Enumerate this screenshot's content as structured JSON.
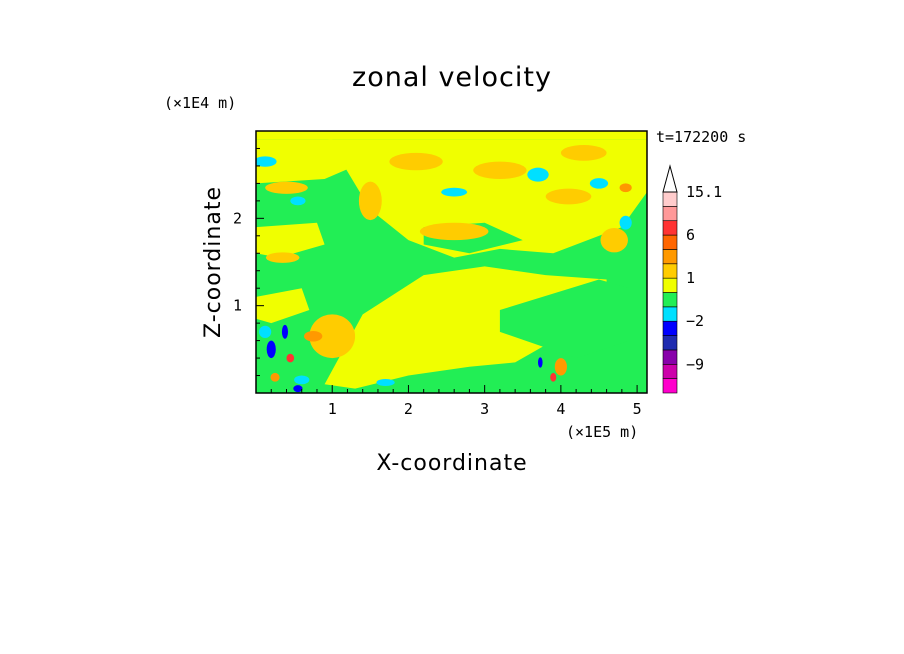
{
  "chart_data": {
    "type": "heatmap",
    "title": "zonal velocity",
    "xlabel": "X-coordinate",
    "ylabel": "Z-coordinate",
    "x_unit": "(×1E5 m)",
    "y_unit": "(×1E4 m)",
    "time_label": "t=172200 s",
    "xlim": [
      0,
      5.13
    ],
    "ylim": [
      0,
      3.0
    ],
    "xticks": [
      1,
      2,
      3,
      4,
      5
    ],
    "yticks": [
      1,
      2
    ],
    "colorbar": {
      "labels": [
        "15.1",
        "6",
        "1",
        "−2",
        "−9"
      ],
      "label_values": [
        15.1,
        6,
        1,
        -2,
        -9
      ],
      "levels": [
        {
          "color": "#ff00cc",
          "lo": -15,
          "hi": -11
        },
        {
          "color": "#cc00aa",
          "lo": -11,
          "hi": -9
        },
        {
          "color": "#8800aa",
          "lo": -9,
          "hi": -6
        },
        {
          "color": "#1f2bb0",
          "lo": -6,
          "hi": -4
        },
        {
          "color": "#0000ff",
          "lo": -4,
          "hi": -2
        },
        {
          "color": "#00e0ff",
          "lo": -2,
          "hi": -1
        },
        {
          "color": "#22ee55",
          "lo": -1,
          "hi": 0
        },
        {
          "color": "#f0ff00",
          "lo": 0,
          "hi": 1
        },
        {
          "color": "#ffcc00",
          "lo": 1,
          "hi": 2
        },
        {
          "color": "#ff9900",
          "lo": 2,
          "hi": 4
        },
        {
          "color": "#ff6600",
          "lo": 4,
          "hi": 6
        },
        {
          "color": "#ff3333",
          "lo": 6,
          "hi": 9
        },
        {
          "color": "#ff9999",
          "lo": 9,
          "hi": 12
        },
        {
          "color": "#ffcccc",
          "lo": 12,
          "hi": 15.1
        }
      ],
      "overflow_color": "#ffffff"
    },
    "field": {
      "background": "#f0ff00",
      "regions": [
        {
          "shape": "polygon",
          "color": "#22ee55",
          "pts": [
            [
              0,
              2.9
            ],
            [
              5.13,
              2.9
            ],
            [
              5.13,
              0
            ],
            [
              0,
              0
            ]
          ]
        },
        {
          "shape": "polygon",
          "color": "#f0ff00",
          "pts": [
            [
              0.9,
              0.1
            ],
            [
              1.4,
              0.9
            ],
            [
              2.2,
              1.35
            ],
            [
              3.0,
              1.45
            ],
            [
              3.8,
              1.35
            ],
            [
              4.6,
              1.3
            ],
            [
              4.6,
              0.85
            ],
            [
              3.9,
              0.6
            ],
            [
              3.4,
              0.35
            ],
            [
              2.8,
              0.3
            ],
            [
              2.0,
              0.2
            ],
            [
              1.3,
              0.05
            ]
          ]
        },
        {
          "shape": "polygon",
          "color": "#f0ff00",
          "pts": [
            [
              0.95,
              2.9
            ],
            [
              1.5,
              2.1
            ],
            [
              2.0,
              1.75
            ],
            [
              2.6,
              1.55
            ],
            [
              3.2,
              1.65
            ],
            [
              3.9,
              1.6
            ],
            [
              4.8,
              1.9
            ],
            [
              5.13,
              2.3
            ],
            [
              5.13,
              2.9
            ]
          ]
        },
        {
          "shape": "polygon",
          "color": "#f0ff00",
          "pts": [
            [
              0,
              2.4
            ],
            [
              0.9,
              2.45
            ],
            [
              1.3,
              2.6
            ],
            [
              1.0,
              2.9
            ],
            [
              0,
              2.9
            ]
          ]
        },
        {
          "shape": "polygon",
          "color": "#f0ff00",
          "pts": [
            [
              0,
              1.9
            ],
            [
              0.8,
              1.95
            ],
            [
              0.9,
              1.7
            ],
            [
              0.3,
              1.55
            ],
            [
              0,
              1.6
            ]
          ]
        },
        {
          "shape": "polygon",
          "color": "#f0ff00",
          "pts": [
            [
              0,
              1.1
            ],
            [
              0.6,
              1.2
            ],
            [
              0.7,
              0.95
            ],
            [
              0.2,
              0.8
            ],
            [
              0,
              0.85
            ]
          ]
        },
        {
          "shape": "polygon",
          "color": "#22ee55",
          "pts": [
            [
              2.2,
              1.9
            ],
            [
              3.0,
              1.95
            ],
            [
              3.5,
              1.75
            ],
            [
              2.8,
              1.6
            ],
            [
              2.2,
              1.7
            ]
          ]
        },
        {
          "shape": "polygon",
          "color": "#22ee55",
          "pts": [
            [
              3.2,
              0.95
            ],
            [
              4.5,
              1.3
            ],
            [
              4.9,
              1.2
            ],
            [
              4.9,
              0.6
            ],
            [
              4.2,
              0.4
            ],
            [
              3.7,
              0.55
            ],
            [
              3.2,
              0.7
            ]
          ]
        },
        {
          "shape": "ellipse",
          "color": "#ffcc00",
          "cx": 2.6,
          "cy": 1.85,
          "rx": 0.45,
          "ry": 0.1
        },
        {
          "shape": "ellipse",
          "color": "#ffcc00",
          "cx": 2.1,
          "cy": 2.65,
          "rx": 0.35,
          "ry": 0.1
        },
        {
          "shape": "ellipse",
          "color": "#ffcc00",
          "cx": 3.2,
          "cy": 2.55,
          "rx": 0.35,
          "ry": 0.1
        },
        {
          "shape": "ellipse",
          "color": "#ffcc00",
          "cx": 4.1,
          "cy": 2.25,
          "rx": 0.3,
          "ry": 0.09
        },
        {
          "shape": "ellipse",
          "color": "#ffcc00",
          "cx": 0.4,
          "cy": 2.35,
          "rx": 0.28,
          "ry": 0.07
        },
        {
          "shape": "ellipse",
          "color": "#ffcc00",
          "cx": 0.35,
          "cy": 1.55,
          "rx": 0.22,
          "ry": 0.06
        },
        {
          "shape": "ellipse",
          "color": "#ffcc00",
          "cx": 1.5,
          "cy": 2.2,
          "rx": 0.15,
          "ry": 0.22
        },
        {
          "shape": "ellipse",
          "color": "#ffcc00",
          "cx": 4.3,
          "cy": 2.75,
          "rx": 0.3,
          "ry": 0.09
        },
        {
          "shape": "ellipse",
          "color": "#ffcc00",
          "cx": 4.7,
          "cy": 1.75,
          "rx": 0.18,
          "ry": 0.14
        },
        {
          "shape": "ellipse",
          "color": "#ffcc00",
          "cx": 1.0,
          "cy": 0.65,
          "rx": 0.3,
          "ry": 0.25
        },
        {
          "shape": "ellipse",
          "color": "#ff9900",
          "cx": 0.75,
          "cy": 0.65,
          "rx": 0.12,
          "ry": 0.06
        },
        {
          "shape": "ellipse",
          "color": "#ff9900",
          "cx": 4.0,
          "cy": 0.3,
          "rx": 0.08,
          "ry": 0.1
        },
        {
          "shape": "ellipse",
          "color": "#ff9900",
          "cx": 4.85,
          "cy": 2.35,
          "rx": 0.08,
          "ry": 0.05
        },
        {
          "shape": "ellipse",
          "color": "#ff9900",
          "cx": 0.25,
          "cy": 0.18,
          "rx": 0.06,
          "ry": 0.05
        },
        {
          "shape": "ellipse",
          "color": "#00e0ff",
          "cx": 0.12,
          "cy": 2.65,
          "rx": 0.15,
          "ry": 0.06
        },
        {
          "shape": "ellipse",
          "color": "#00e0ff",
          "cx": 0.55,
          "cy": 2.2,
          "rx": 0.1,
          "ry": 0.05
        },
        {
          "shape": "ellipse",
          "color": "#00e0ff",
          "cx": 2.6,
          "cy": 2.3,
          "rx": 0.17,
          "ry": 0.05
        },
        {
          "shape": "ellipse",
          "color": "#00e0ff",
          "cx": 3.7,
          "cy": 2.5,
          "rx": 0.14,
          "ry": 0.08
        },
        {
          "shape": "ellipse",
          "color": "#00e0ff",
          "cx": 4.5,
          "cy": 2.4,
          "rx": 0.12,
          "ry": 0.06
        },
        {
          "shape": "ellipse",
          "color": "#00e0ff",
          "cx": 4.85,
          "cy": 1.95,
          "rx": 0.08,
          "ry": 0.08
        },
        {
          "shape": "ellipse",
          "color": "#00e0ff",
          "cx": 0.12,
          "cy": 0.7,
          "rx": 0.08,
          "ry": 0.07
        },
        {
          "shape": "ellipse",
          "color": "#00e0ff",
          "cx": 0.6,
          "cy": 0.15,
          "rx": 0.1,
          "ry": 0.05
        },
        {
          "shape": "ellipse",
          "color": "#00e0ff",
          "cx": 1.7,
          "cy": 0.12,
          "rx": 0.12,
          "ry": 0.04
        },
        {
          "shape": "ellipse",
          "color": "#0000ff",
          "cx": 0.2,
          "cy": 0.5,
          "rx": 0.06,
          "ry": 0.1
        },
        {
          "shape": "ellipse",
          "color": "#0000ff",
          "cx": 0.38,
          "cy": 0.7,
          "rx": 0.04,
          "ry": 0.08
        },
        {
          "shape": "ellipse",
          "color": "#0000ff",
          "cx": 0.55,
          "cy": 0.05,
          "rx": 0.06,
          "ry": 0.04
        },
        {
          "shape": "ellipse",
          "color": "#0000ff",
          "cx": 3.73,
          "cy": 0.35,
          "rx": 0.03,
          "ry": 0.06
        },
        {
          "shape": "ellipse",
          "color": "#ff3333",
          "cx": 0.45,
          "cy": 0.4,
          "rx": 0.05,
          "ry": 0.05
        },
        {
          "shape": "ellipse",
          "color": "#ff3333",
          "cx": 3.9,
          "cy": 0.18,
          "rx": 0.04,
          "ry": 0.05
        }
      ]
    }
  }
}
